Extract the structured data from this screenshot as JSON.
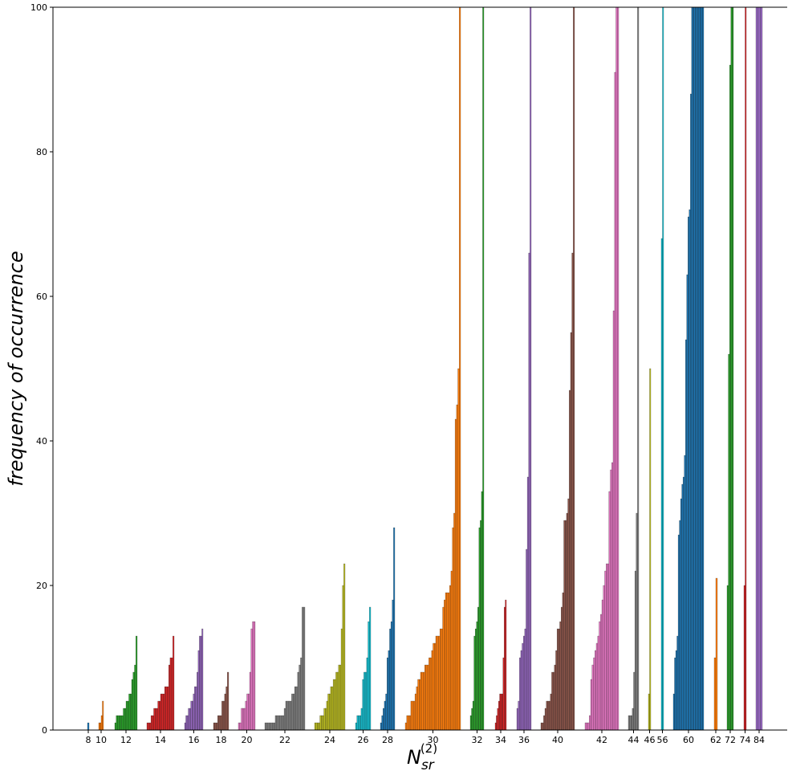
{
  "chart_data": {
    "type": "bar",
    "ylabel": "frequency of occurrence",
    "xlabel": "N",
    "xlabel_sub": "sr",
    "xlabel_sup": "(2)",
    "ylim": [
      0,
      100
    ],
    "yticks": [
      0,
      20,
      40,
      60,
      80,
      100
    ],
    "grid": false,
    "legend": "none",
    "palette": [
      "#1f77b4",
      "#ff7f0e",
      "#2ca02c",
      "#d62728",
      "#9467bd",
      "#8c564b",
      "#e377c2",
      "#7f7f7f",
      "#bcbd22",
      "#17becf"
    ],
    "groups": [
      {
        "label": "8",
        "color": "#1f77b4",
        "values": [
          1
        ]
      },
      {
        "label": "10",
        "color": "#ff7f0e",
        "values": [
          1,
          1,
          2,
          4
        ]
      },
      {
        "label": "12",
        "color": "#2ca02c",
        "values": [
          1,
          2,
          2,
          2,
          2,
          2,
          3,
          3,
          4,
          4,
          5,
          5,
          7,
          8,
          9,
          13
        ]
      },
      {
        "label": "14",
        "color": "#d62728",
        "values": [
          1,
          1,
          1,
          2,
          2,
          3,
          3,
          3,
          4,
          4,
          5,
          5,
          5,
          6,
          6,
          6,
          9,
          10,
          10,
          13
        ]
      },
      {
        "label": "16",
        "color": "#9467bd",
        "values": [
          1,
          2,
          2,
          3,
          3,
          4,
          4,
          5,
          6,
          6,
          8,
          11,
          13,
          13,
          14
        ]
      },
      {
        "label": "18",
        "color": "#8c564b",
        "values": [
          1,
          1,
          1,
          2,
          2,
          2,
          4,
          4,
          5,
          6,
          8
        ]
      },
      {
        "label": "20",
        "color": "#e377c2",
        "values": [
          1,
          1,
          3,
          3,
          3,
          4,
          5,
          5,
          8,
          14,
          15,
          15
        ]
      },
      {
        "label": "22",
        "color": "#7f7f7f",
        "values": [
          1,
          1,
          1,
          1,
          1,
          1,
          1,
          2,
          2,
          2,
          2,
          2,
          2,
          3,
          4,
          4,
          4,
          4,
          5,
          5,
          6,
          6,
          8,
          9,
          10,
          17,
          17
        ]
      },
      {
        "label": "24",
        "color": "#bcbd22",
        "values": [
          1,
          1,
          1,
          1,
          2,
          2,
          2,
          3,
          3,
          4,
          5,
          5,
          6,
          6,
          7,
          7,
          8,
          8,
          9,
          9,
          14,
          20,
          23
        ]
      },
      {
        "label": "26",
        "color": "#17becf",
        "values": [
          1,
          2,
          2,
          2,
          3,
          7,
          8,
          8,
          10,
          15,
          17
        ]
      },
      {
        "label": "28",
        "color": "#1f77b4",
        "values": [
          1,
          2,
          3,
          4,
          5,
          10,
          11,
          14,
          15,
          18,
          28
        ]
      },
      {
        "label": "30",
        "color": "#ff7f0e",
        "values": [
          1,
          2,
          2,
          2,
          4,
          4,
          4,
          5,
          6,
          7,
          7,
          8,
          8,
          8,
          9,
          9,
          9,
          10,
          10,
          11,
          12,
          12,
          13,
          13,
          13,
          14,
          14,
          17,
          18,
          19,
          19,
          19,
          20,
          22,
          28,
          30,
          43,
          45,
          50,
          100
        ]
      },
      {
        "label": "32",
        "color": "#2ca02c",
        "values": [
          2,
          3,
          4,
          13,
          14,
          15,
          17,
          28,
          29,
          33,
          100
        ]
      },
      {
        "label": "34",
        "color": "#d62728",
        "values": [
          1,
          2,
          3,
          4,
          5,
          5,
          5,
          10,
          17,
          18
        ]
      },
      {
        "label": "36",
        "color": "#9467bd",
        "values": [
          3,
          4,
          10,
          11,
          12,
          13,
          14,
          25,
          35,
          66,
          100
        ]
      },
      {
        "label": "40",
        "color": "#8c564b",
        "values": [
          1,
          1,
          2,
          3,
          4,
          4,
          4,
          5,
          8,
          8,
          9,
          11,
          14,
          14,
          15,
          17,
          19,
          29,
          29,
          30,
          32,
          47,
          55,
          66,
          100
        ]
      },
      {
        "label": "42",
        "color": "#e377c2",
        "values": [
          1,
          1,
          1,
          2,
          7,
          9,
          10,
          11,
          12,
          13,
          15,
          16,
          18,
          20,
          22,
          23,
          23,
          33,
          36,
          37,
          58,
          91,
          100,
          100
        ]
      },
      {
        "label": "44",
        "color": "#7f7f7f",
        "values": [
          2,
          2,
          2,
          3,
          8,
          22,
          30,
          100
        ]
      },
      {
        "label": "46",
        "color": "#bcbd22",
        "values": [
          5,
          50
        ]
      },
      {
        "label": "56",
        "color": "#17becf",
        "values": [
          68,
          100
        ]
      },
      {
        "label": "60",
        "color": "#1f77b4",
        "values": [
          5,
          10,
          11,
          13,
          27,
          29,
          32,
          34,
          35,
          38,
          54,
          63,
          71,
          72,
          88,
          100,
          100,
          100,
          100,
          100,
          100,
          100,
          100,
          100,
          100
        ]
      },
      {
        "label": "62",
        "color": "#ff7f0e",
        "values": [
          10,
          21
        ]
      },
      {
        "label": "72",
        "color": "#2ca02c",
        "values": [
          20,
          52,
          92,
          100,
          100
        ]
      },
      {
        "label": "74",
        "color": "#d62728",
        "values": [
          20,
          100
        ]
      },
      {
        "label": "84",
        "color": "#9467bd",
        "values": [
          100,
          100,
          100
        ]
      }
    ]
  }
}
